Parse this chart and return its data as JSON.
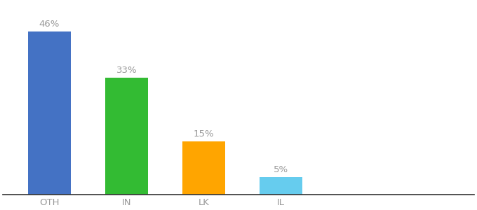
{
  "categories": [
    "OTH",
    "IN",
    "LK",
    "IL"
  ],
  "values": [
    46,
    33,
    15,
    5
  ],
  "bar_colors": [
    "#4472C4",
    "#33BB33",
    "#FFA500",
    "#66CCEE"
  ],
  "labels": [
    "46%",
    "33%",
    "15%",
    "5%"
  ],
  "ylim": [
    0,
    54
  ],
  "background_color": "#ffffff",
  "label_fontsize": 9.5,
  "tick_fontsize": 9.5,
  "bar_width": 0.55,
  "label_color": "#999999",
  "tick_color": "#999999",
  "bottom_spine_color": "#333333"
}
